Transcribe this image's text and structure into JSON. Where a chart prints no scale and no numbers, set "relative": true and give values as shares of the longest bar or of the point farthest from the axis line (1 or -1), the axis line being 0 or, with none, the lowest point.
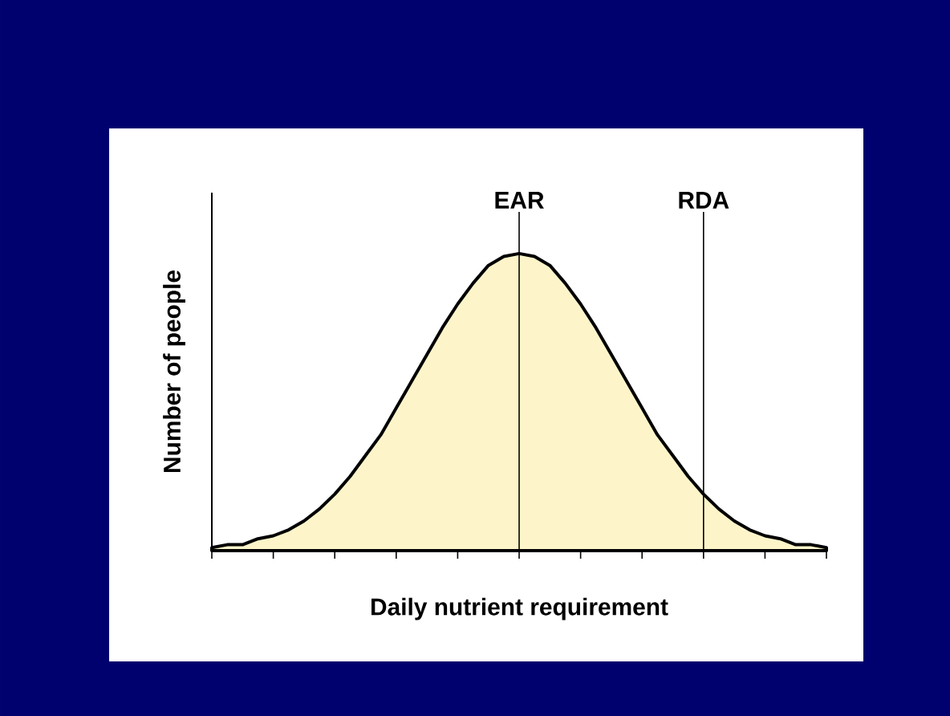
{
  "chart_data": {
    "type": "area",
    "xlabel": "Daily nutrient requirement",
    "ylabel": "Number of people",
    "relative": true,
    "categories": [
      null,
      null,
      null,
      null,
      null,
      null,
      null,
      null,
      null,
      null,
      null,
      null,
      null,
      null,
      null,
      null,
      null,
      null,
      null,
      null,
      null,
      null,
      null,
      null,
      null,
      null,
      null,
      null,
      null,
      null,
      null,
      null,
      null,
      null,
      null,
      null,
      null,
      null,
      null,
      null,
      null
    ],
    "values": [
      0.01,
      0.02,
      0.02,
      0.04,
      0.05,
      0.07,
      0.1,
      0.14,
      0.19,
      0.25,
      0.32,
      0.39,
      0.48,
      0.57,
      0.66,
      0.75,
      0.83,
      0.9,
      0.96,
      0.99,
      1,
      0.99,
      0.96,
      0.9,
      0.83,
      0.75,
      0.66,
      0.57,
      0.48,
      0.39,
      0.32,
      0.25,
      0.19,
      0.14,
      0.1,
      0.07,
      0.05,
      0.04,
      0.02,
      0.02,
      0.01
    ],
    "color": "#fdf5c9",
    "annotations": [
      "EAR",
      "RDA"
    ]
  }
}
